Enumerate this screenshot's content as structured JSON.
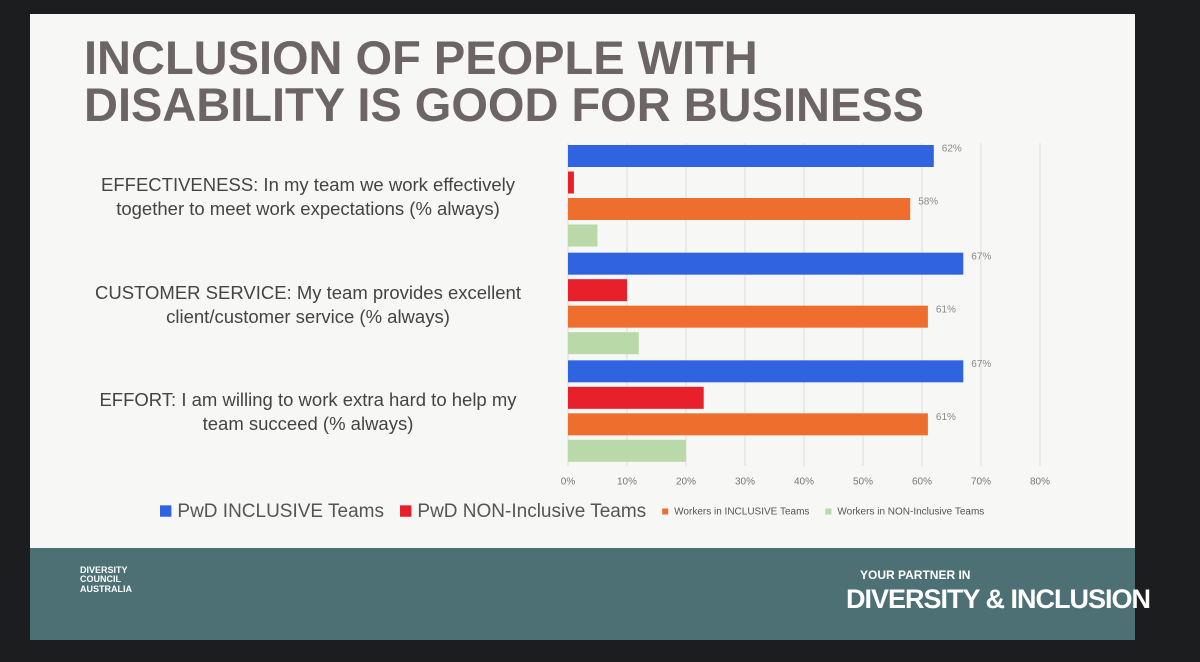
{
  "chart_data": {
    "type": "hbar",
    "title": "INCLUSION OF PEOPLE WITH DISABILITY IS GOOD FOR BUSINESS",
    "categories": [
      "EFFECTIVENESS: In my team we work effectively together to meet work expectations (% always)",
      "CUSTOMER SERVICE: My team provides excellent client/customer service (% always)",
      "EFFORT: I am willing to work extra hard to help my team succeed (% always)"
    ],
    "series": [
      {
        "name": "PwD INCLUSIVE Teams",
        "color": "#2f63e0",
        "values": [
          62,
          67,
          67
        ],
        "value_labels": [
          "62%",
          "67%",
          "67%"
        ]
      },
      {
        "name": "PwD NON-Inclusive Teams",
        "color": "#e8202c",
        "values": [
          1,
          10,
          23
        ]
      },
      {
        "name": "Workers in INCLUSIVE Teams",
        "color": "#ee6f2d",
        "values": [
          58,
          61,
          61
        ],
        "value_labels": [
          "58%",
          "61%",
          "61%"
        ]
      },
      {
        "name": "Workers in NON-Inclusive Teams",
        "color": "#b9d9a9",
        "values": [
          5,
          12,
          20
        ]
      }
    ],
    "xlim": [
      0,
      80
    ],
    "xticks": [
      {
        "value": 0,
        "label": "0%"
      },
      {
        "value": 10,
        "label": "10%"
      },
      {
        "value": 20,
        "label": "20%"
      },
      {
        "value": 30,
        "label": "30%"
      },
      {
        "value": 40,
        "label": "40%"
      },
      {
        "value": 50,
        "label": "50%"
      },
      {
        "value": 60,
        "label": "60%"
      },
      {
        "value": 70,
        "label": "70%"
      },
      {
        "value": 80,
        "label": "80%"
      }
    ],
    "grid": true,
    "legend": "bottom"
  },
  "footer": {
    "logo_text": "DIVERSITY COUNCIL AUSTRALIA",
    "tagline": "YOUR PARTNER IN",
    "brand": "DIVERSITY & INCLUSION"
  }
}
